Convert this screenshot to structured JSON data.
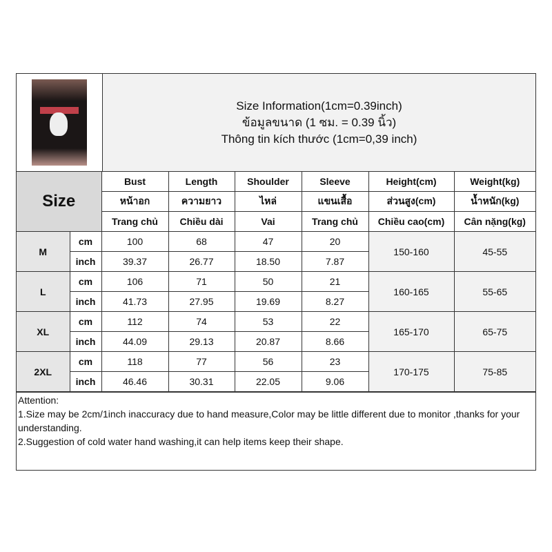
{
  "header": {
    "lines": [
      "Size Information(1cm=0.39inch)",
      "ข้อมูลขนาด (1 ซม. = 0.39 นิ้ว)",
      "Thông tin kích thước (1cm=0,39 inch)"
    ]
  },
  "table": {
    "size_label": "Size",
    "columns": [
      {
        "en": "Bust",
        "th": "หน้าอก",
        "vi": "Trang chủ"
      },
      {
        "en": "Length",
        "th": "ความยาว",
        "vi": "Chiều dài"
      },
      {
        "en": "Shoulder",
        "th": "ไหล่",
        "vi": "Vai"
      },
      {
        "en": "Sleeve",
        "th": "แขนเสื้อ",
        "vi": "Trang chủ"
      },
      {
        "en": "Height(cm)",
        "th": "ส่วนสูง(cm)",
        "vi": "Chiều cao(cm)"
      },
      {
        "en": "Weight(kg)",
        "th": "น้ำหนัก(kg)",
        "vi": "Cân nặng(kg)"
      }
    ],
    "rows": [
      {
        "size": "M",
        "cm": [
          "100",
          "68",
          "47",
          "20"
        ],
        "inch": [
          "39.37",
          "26.77",
          "18.50",
          "7.87"
        ],
        "height": "150-160",
        "weight": "45-55"
      },
      {
        "size": "L",
        "cm": [
          "106",
          "71",
          "50",
          "21"
        ],
        "inch": [
          "41.73",
          "27.95",
          "19.69",
          "8.27"
        ],
        "height": "160-165",
        "weight": "55-65"
      },
      {
        "size": "XL",
        "cm": [
          "112",
          "74",
          "53",
          "22"
        ],
        "inch": [
          "44.09",
          "29.13",
          "20.87",
          "8.66"
        ],
        "height": "165-170",
        "weight": "65-75"
      },
      {
        "size": "2XL",
        "cm": [
          "118",
          "77",
          "56",
          "23"
        ],
        "inch": [
          "46.46",
          "30.31",
          "22.05",
          "9.06"
        ],
        "height": "170-175",
        "weight": "75-85"
      }
    ],
    "unit_cm": "cm",
    "unit_inch": "inch"
  },
  "attention": {
    "title": "Attention:",
    "lines": [
      "1.Size may be 2cm/1inch inaccuracy due to hand measure,Color may be little different due to monitor ,thanks for your understanding.",
      "2.Suggestion of cold water hand washing,it can help items keep their shape."
    ]
  }
}
